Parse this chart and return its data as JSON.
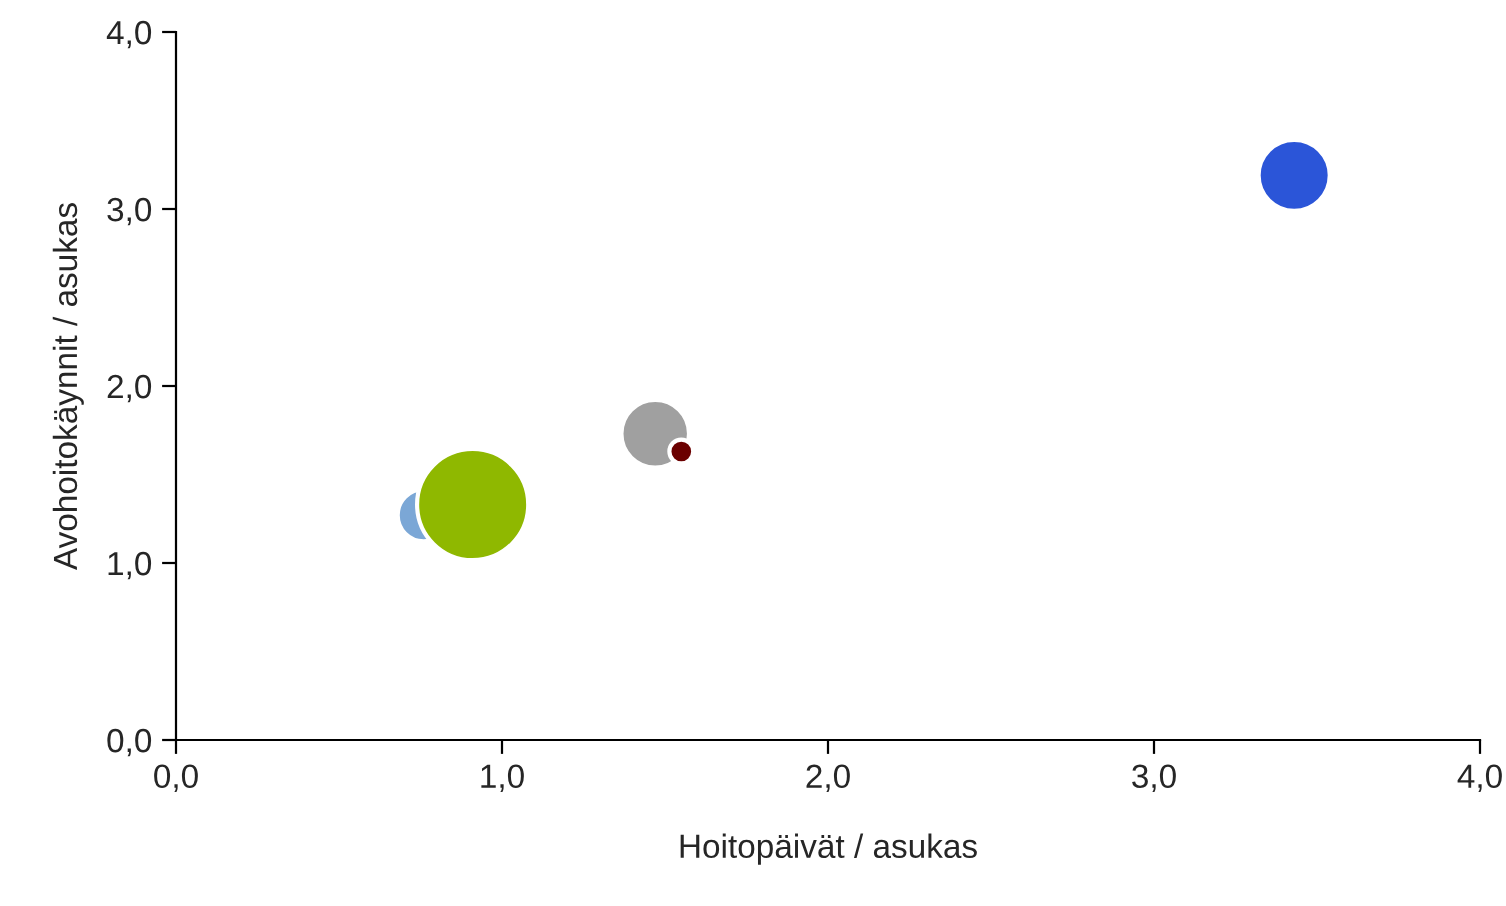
{
  "chart_data": {
    "type": "bubble",
    "xlabel": "Hoitopäivät / asukas",
    "ylabel": "Avohoitokäynnit / asukas",
    "x": [
      0.76,
      0.91,
      1.47,
      1.55,
      3.43
    ],
    "values": [
      1.27,
      1.33,
      1.73,
      1.63,
      3.19
    ],
    "sizes": [
      0.22,
      1,
      0.37,
      0.046,
      0.41
    ],
    "colors": [
      "#7ba7d6",
      "#8fb800",
      "#a0a0a0",
      "#6b0000",
      "#2b55d8"
    ],
    "xlim": [
      0,
      4
    ],
    "ylim": [
      0,
      4
    ],
    "xticks": [
      {
        "value": 0,
        "label": "0,0"
      },
      {
        "value": 1,
        "label": "1,0"
      },
      {
        "value": 2,
        "label": "2,0"
      },
      {
        "value": 3,
        "label": "3,0"
      },
      {
        "value": 4,
        "label": "4,0"
      }
    ],
    "yticks": [
      {
        "value": 0,
        "label": "0,0"
      },
      {
        "value": 1,
        "label": "1,0"
      },
      {
        "value": 2,
        "label": "2,0"
      },
      {
        "value": 3,
        "label": "3,0"
      },
      {
        "value": 4,
        "label": "4,0"
      }
    ],
    "grid": false,
    "legend": false
  }
}
